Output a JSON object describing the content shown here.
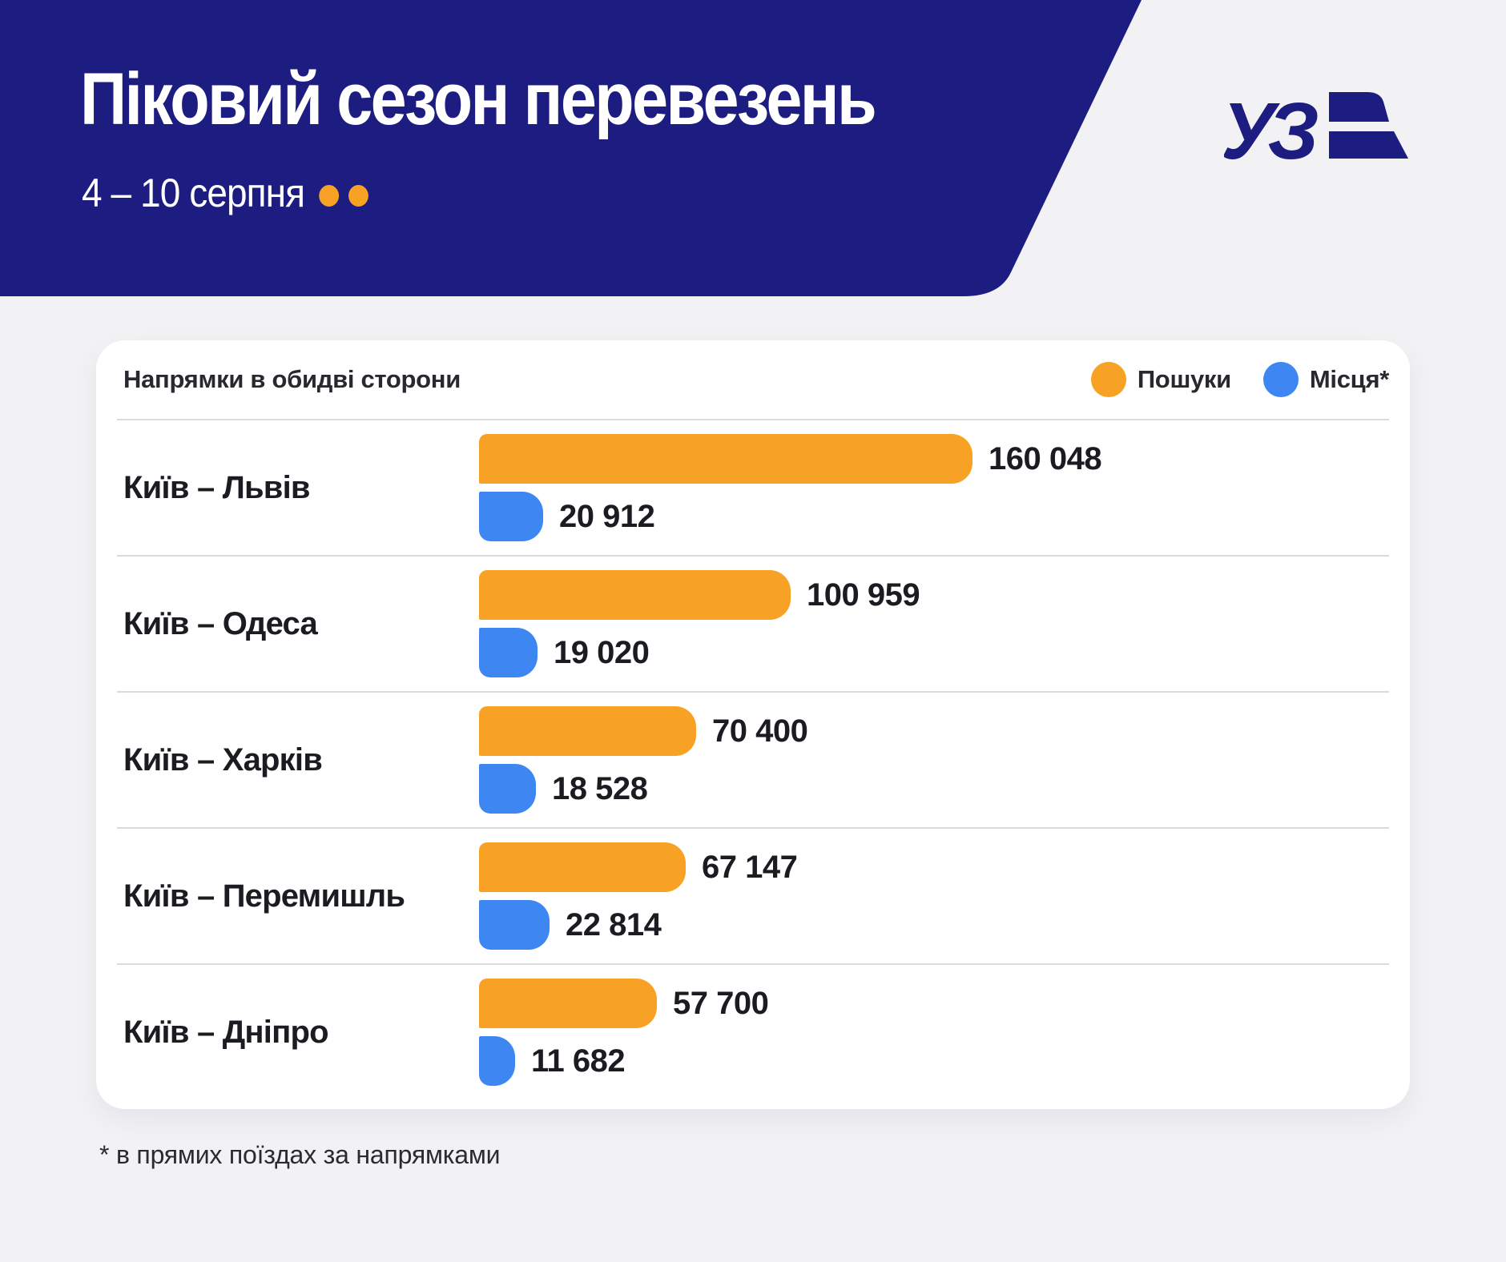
{
  "header": {
    "title": "Піковий сезон перевезень",
    "subtitle": "4 – 10 серпня",
    "brand": "УЗ"
  },
  "panel": {
    "note": "Напрямки в обидві сторони",
    "legend": [
      {
        "label": "Пошуки",
        "color": "#F7A125"
      },
      {
        "label": "Місця*",
        "color": "#3E86F1"
      }
    ],
    "footnote": "* в прямих поїздах за напрямками"
  },
  "chart_data": {
    "type": "bar",
    "orientation": "horizontal",
    "title": "Піковий сезон перевезень",
    "subtitle": "4 – 10 серпня",
    "note": "Напрямки в обидві сторони",
    "footnote": "* в прямих поїздах за напрямками",
    "categories": [
      "Київ – Львів",
      "Київ – Одеса",
      "Київ – Харків",
      "Київ – Перемишль",
      "Київ – Дніпро"
    ],
    "series": [
      {
        "name": "Пошуки",
        "color": "#F7A125",
        "values": [
          160048,
          100959,
          70400,
          67147,
          57700
        ],
        "labels": [
          "160 048",
          "100 959",
          "70 400",
          "67 147",
          "57 700"
        ]
      },
      {
        "name": "Місця*",
        "color": "#3E86F1",
        "values": [
          20912,
          19020,
          18528,
          22814,
          11682
        ],
        "labels": [
          "20 912",
          "19 020",
          "18 528",
          "22 814",
          "11 682"
        ]
      }
    ],
    "value_axis": {
      "min": 0,
      "max": 160048,
      "visible": false
    },
    "grid": false,
    "legend_position": "top-right"
  },
  "colors": {
    "navy": "#1D1C80",
    "orange": "#F7A125",
    "blue": "#3E86F1",
    "page_bg": "#F2F2F4",
    "card_bg": "#FFFFFF",
    "divider": "#DBDBDF",
    "text": "#1B1B22"
  }
}
